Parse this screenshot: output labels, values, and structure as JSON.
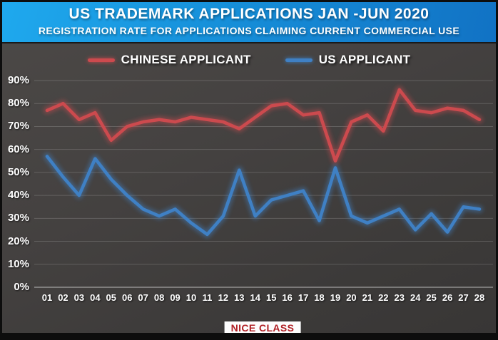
{
  "header": {
    "title": "US TRADEMARK APPLICATIONS JAN -JUN 2020",
    "subtitle": "REGISTRATION RATE FOR APPLICATIONS  CLAIMING CURRENT COMMERCIAL USE"
  },
  "legend": [
    {
      "label": "CHINESE APPLICANT",
      "color": "#cc4a4e"
    },
    {
      "label": "US APPLICANT",
      "color": "#3f80c4"
    }
  ],
  "x_axis_title": "NICE CLASS",
  "colors": {
    "header_blue_left": "#1fa9ee",
    "header_blue_right": "#1172c4",
    "background_gray": "#444140",
    "chinese_line": "#cc4a4e",
    "us_line": "#3f80c4",
    "gridline": "rgba(255,255,255,0.17)",
    "zero_axis": "rgba(245,245,245,0.55)",
    "nice_class_text": "#b02025",
    "nice_class_bg": "#fdfdfd"
  },
  "chart_data": {
    "type": "line",
    "title": "US TRADEMARK APPLICATIONS JAN -JUN 2020",
    "subtitle": "REGISTRATION RATE FOR APPLICATIONS  CLAIMING CURRENT COMMERCIAL USE",
    "xlabel": "NICE CLASS",
    "ylabel": "",
    "ylim": [
      0,
      90
    ],
    "grid": true,
    "legend_position": "top",
    "y_ticks": [
      "0%",
      "10%",
      "20%",
      "30%",
      "40%",
      "50%",
      "60%",
      "70%",
      "80%",
      "90%"
    ],
    "categories": [
      "01",
      "02",
      "03",
      "04",
      "05",
      "06",
      "07",
      "08",
      "09",
      "10",
      "11",
      "12",
      "13",
      "14",
      "15",
      "16",
      "17",
      "18",
      "19",
      "20",
      "21",
      "22",
      "23",
      "24",
      "25",
      "26",
      "27",
      "28"
    ],
    "series": [
      {
        "name": "CHINESE APPLICANT",
        "color": "#cc4a4e",
        "values": [
          77,
          80,
          73,
          76,
          64,
          70,
          72,
          73,
          72,
          74,
          73,
          72,
          69,
          74,
          79,
          80,
          75,
          76,
          55,
          72,
          75,
          68,
          86,
          77,
          76,
          78,
          77,
          73
        ]
      },
      {
        "name": "US APPLICANT",
        "color": "#3f80c4",
        "values": [
          57,
          48,
          40,
          56,
          47,
          40,
          34,
          31,
          34,
          28,
          23,
          31,
          51,
          31,
          38,
          40,
          42,
          29,
          52,
          31,
          28,
          31,
          34,
          25,
          32,
          24,
          35,
          34
        ]
      }
    ]
  }
}
